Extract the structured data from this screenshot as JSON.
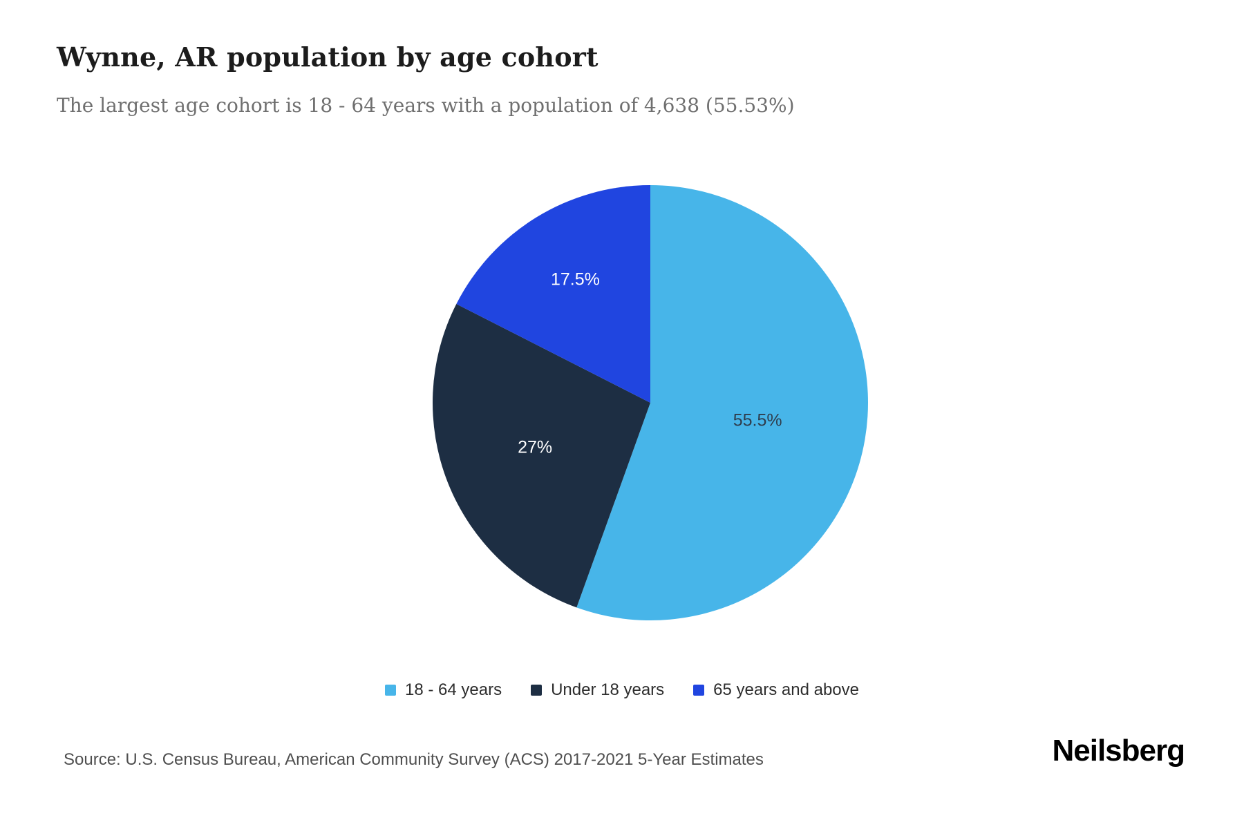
{
  "header": {
    "title": "Wynne, AR population by age cohort",
    "subtitle": "The largest age cohort is 18 - 64 years with a population of 4,638 (55.53%)"
  },
  "chart_data": {
    "type": "pie",
    "title": "Wynne, AR population by age cohort",
    "subtitle": "The largest age cohort is 18 - 64 years with a population of 4,638 (55.53%)",
    "largest_cohort": {
      "label": "18 - 64 years",
      "population": 4638,
      "percent": 55.53
    },
    "legend_position": "bottom",
    "start_angle_deg": 0,
    "direction": "clockwise",
    "slices": [
      {
        "label": "18 - 64 years",
        "value": 55.5,
        "display": "55.5%",
        "color": "#47b5e9",
        "label_color": "#2f3e4e",
        "label_radius": 0.5
      },
      {
        "label": "Under 18 years",
        "value": 27.0,
        "display": "27%",
        "color": "#1d2e43",
        "label_color": "#ffffff",
        "label_radius": 0.57
      },
      {
        "label": "65 years and above",
        "value": 17.5,
        "display": "17.5%",
        "color": "#2045e0",
        "label_color": "#ffffff",
        "label_radius": 0.66
      }
    ]
  },
  "footer": {
    "source": "Source: U.S. Census Bureau, American Community Survey (ACS) 2017-2021 5-Year Estimates",
    "brand": "Neilsberg"
  }
}
